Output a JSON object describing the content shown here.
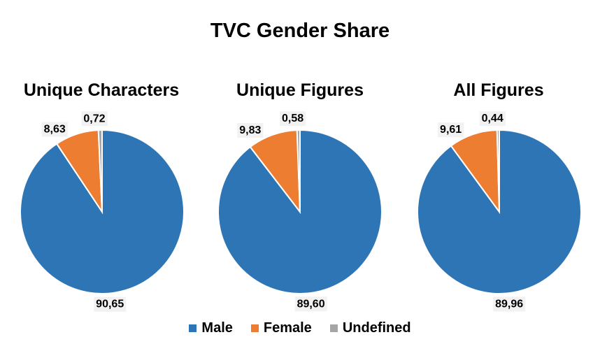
{
  "title": "TVC Gender Share",
  "chart_data": [
    {
      "type": "pie",
      "title": "Unique Characters",
      "slices": [
        {
          "name": "Male",
          "value": 90.65,
          "label": "90,65"
        },
        {
          "name": "Female",
          "value": 8.63,
          "label": "8,63"
        },
        {
          "name": "Undefined",
          "value": 0.72,
          "label": "0,72"
        }
      ]
    },
    {
      "type": "pie",
      "title": "Unique Figures",
      "slices": [
        {
          "name": "Male",
          "value": 89.6,
          "label": "89,60"
        },
        {
          "name": "Female",
          "value": 9.83,
          "label": "9,83"
        },
        {
          "name": "Undefined",
          "value": 0.58,
          "label": "0,58"
        }
      ]
    },
    {
      "type": "pie",
      "title": "All Figures",
      "slices": [
        {
          "name": "Male",
          "value": 89.96,
          "label": "89,96"
        },
        {
          "name": "Female",
          "value": 9.61,
          "label": "9,61"
        },
        {
          "name": "Undefined",
          "value": 0.44,
          "label": "0,44"
        }
      ]
    }
  ],
  "legend": [
    {
      "label": "Male",
      "color": "#2E75B6"
    },
    {
      "label": "Female",
      "color": "#ED7D31"
    },
    {
      "label": "Undefined",
      "color": "#A5A5A5"
    }
  ],
  "colors": {
    "Male": "#2E75B6",
    "Female": "#ED7D31",
    "Undefined": "#A5A5A5"
  }
}
